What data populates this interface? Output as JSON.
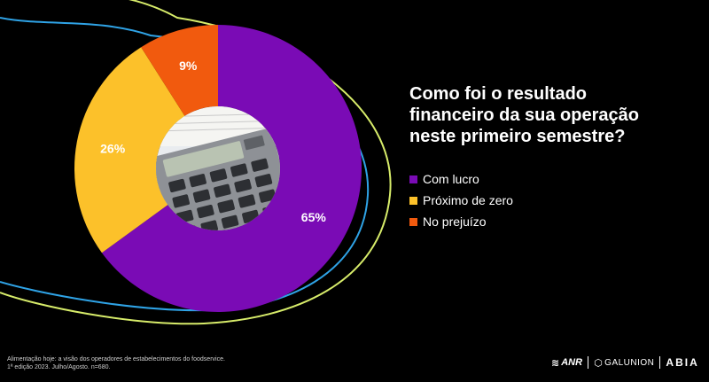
{
  "chart_data": {
    "type": "pie",
    "title": "Como foi o resultado financeiro da sua operação neste primeiro semestre?",
    "categories": [
      "Com lucro",
      "Próximo de zero",
      "No prejuízo"
    ],
    "values": [
      65,
      26,
      9
    ],
    "data_labels": [
      "65%",
      "26%",
      "9%"
    ],
    "colors": [
      "#7a0bb5",
      "#fcc12a",
      "#f15a0e"
    ],
    "legend_position": "right"
  },
  "question_lines": [
    "Como foi o resultado",
    "financeiro da sua operação",
    "neste primeiro semestre?"
  ],
  "footer": {
    "line1": "Alimentação hoje: a visão dos operadores de estabelecimentos do foodservice.",
    "line2": "1ª edição 2023. Julho/Agosto. n=680."
  },
  "logos": {
    "anr": "ANR",
    "galunion": "GALUNION",
    "abia": "ABIA"
  },
  "decor_colors": {
    "outer_curve": "#d7ec6a",
    "inner_curve": "#2fa3e6"
  }
}
